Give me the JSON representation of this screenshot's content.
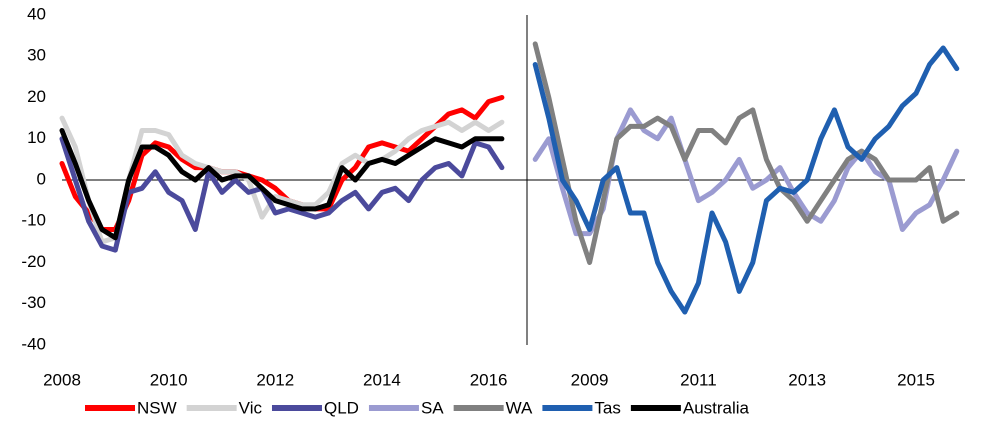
{
  "chart_data": {
    "type": "line",
    "ylim": [
      -40,
      40
    ],
    "yticks": [
      -40,
      -30,
      -20,
      -10,
      0,
      10,
      20,
      30,
      40
    ],
    "panels": [
      {
        "xlim": [
          2008,
          2016.72
        ],
        "xticks": [
          2008,
          2010,
          2012,
          2014,
          2016
        ],
        "x": [
          2008,
          2008.25,
          2008.5,
          2008.75,
          2009,
          2009.25,
          2009.5,
          2009.75,
          2010,
          2010.25,
          2010.5,
          2010.75,
          2011,
          2011.25,
          2011.5,
          2011.75,
          2012,
          2012.25,
          2012.5,
          2012.75,
          2013,
          2013.25,
          2013.5,
          2013.75,
          2014,
          2014.25,
          2014.5,
          2014.75,
          2015,
          2015.25,
          2015.5,
          2015.75,
          2016,
          2016.25
        ]
      },
      {
        "xlim": [
          2007.85,
          2015.9
        ],
        "xticks": [
          2009,
          2011,
          2013,
          2015
        ],
        "x": [
          2008,
          2008.25,
          2008.5,
          2008.75,
          2009,
          2009.25,
          2009.5,
          2009.75,
          2010,
          2010.25,
          2010.5,
          2010.75,
          2011,
          2011.25,
          2011.5,
          2011.75,
          2012,
          2012.25,
          2012.5,
          2012.75,
          2013,
          2013.25,
          2013.5,
          2013.75,
          2014,
          2014.25,
          2014.5,
          2014.75,
          2015,
          2015.25,
          2015.5,
          2015.75
        ]
      }
    ],
    "series": [
      {
        "name": "NSW",
        "color": "#ff0000",
        "panel": 0,
        "values": [
          4,
          -4,
          -8,
          -12,
          -12,
          -5,
          6,
          9,
          8,
          5,
          3,
          3,
          2,
          2,
          1,
          0,
          -2,
          -5,
          -6,
          -7,
          -7,
          0,
          3,
          8,
          9,
          8,
          7,
          10,
          13,
          16,
          17,
          15,
          19,
          20
        ]
      },
      {
        "name": "Vic",
        "color": "#d3d3d3",
        "panel": 0,
        "values": [
          15,
          8,
          -5,
          -15,
          -14,
          0,
          12,
          12,
          11,
          6,
          4,
          3,
          2,
          2,
          0,
          -9,
          -4,
          -5,
          -6,
          -6,
          -3,
          4,
          6,
          4,
          5,
          7,
          10,
          12,
          13,
          14,
          12,
          14,
          12,
          14
        ]
      },
      {
        "name": "QLD",
        "color": "#4b4a9c",
        "panel": 0,
        "values": [
          10,
          0,
          -10,
          -16,
          -17,
          -3,
          -2,
          2,
          -3,
          -5,
          -12,
          2,
          -3,
          0,
          -3,
          -2,
          -8,
          -7,
          -8,
          -9,
          -8,
          -5,
          -3,
          -7,
          -3,
          -2,
          -5,
          0,
          3,
          4,
          1,
          9,
          8,
          3
        ]
      },
      {
        "name": "SA",
        "color": "#9b9bd1",
        "panel": 1,
        "values": [
          5,
          10,
          -2,
          -13,
          -13,
          -7,
          10,
          17,
          12,
          10,
          15,
          5,
          -5,
          -3,
          0,
          5,
          -2,
          0,
          3,
          -3,
          -8,
          -10,
          -5,
          3,
          7,
          2,
          0,
          -12,
          -8,
          -6,
          0,
          7
        ]
      },
      {
        "name": "WA",
        "color": "#808080",
        "panel": 1,
        "values": [
          33,
          20,
          5,
          -10,
          -20,
          -5,
          10,
          13,
          13,
          15,
          13,
          5,
          12,
          12,
          9,
          15,
          17,
          5,
          -2,
          -5,
          -10,
          -5,
          0,
          5,
          7,
          5,
          0,
          0,
          0,
          3,
          -10,
          -8
        ]
      },
      {
        "name": "Tas",
        "color": "#1f5fb0",
        "panel": 1,
        "values": [
          28,
          15,
          0,
          -5,
          -12,
          0,
          3,
          -8,
          -8,
          -20,
          -27,
          -32,
          -25,
          -8,
          -15,
          -27,
          -20,
          -5,
          -2,
          -3,
          0,
          10,
          17,
          8,
          5,
          10,
          13,
          18,
          21,
          28,
          32,
          27
        ]
      },
      {
        "name": "Australia",
        "color": "#000000",
        "panel": 0,
        "values": [
          12,
          4,
          -5,
          -12,
          -14,
          0,
          8,
          8,
          6,
          2,
          0,
          3,
          0,
          1,
          1,
          -2,
          -5,
          -6,
          -7,
          -7,
          -6,
          3,
          0,
          4,
          5,
          4,
          6,
          8,
          10,
          9,
          8,
          10,
          10,
          10
        ]
      }
    ]
  }
}
